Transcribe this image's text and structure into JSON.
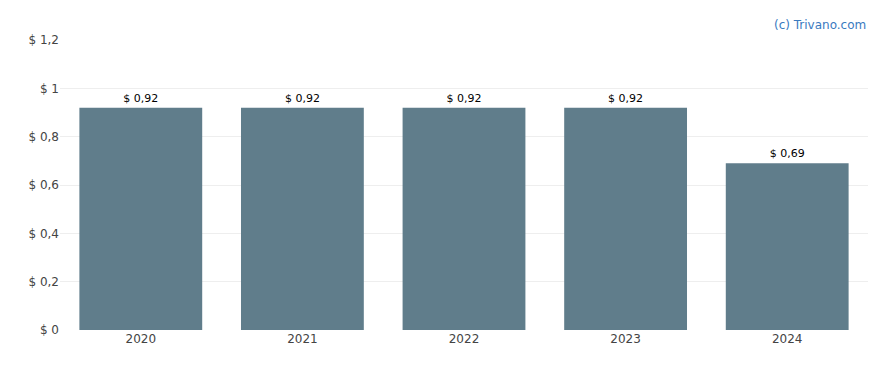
{
  "chart_data": {
    "type": "bar",
    "categories": [
      "2020",
      "2021",
      "2022",
      "2023",
      "2024"
    ],
    "values": [
      0.92,
      0.92,
      0.92,
      0.92,
      0.69
    ],
    "value_labels": [
      "$ 0,92",
      "$ 0,92",
      "$ 0,92",
      "$ 0,92",
      "$ 0,69"
    ],
    "data_labels": true,
    "color": "#607d8b",
    "ylim": [
      0,
      1.2
    ],
    "yticks": [
      {
        "value": 0,
        "label": "$ 0"
      },
      {
        "value": 0.2,
        "label": "$ 0,2"
      },
      {
        "value": 0.4,
        "label": "$ 0,4"
      },
      {
        "value": 0.6,
        "label": "$ 0,6"
      },
      {
        "value": 0.8,
        "label": "$ 0,8"
      },
      {
        "value": 1.0,
        "label": "$ 1"
      },
      {
        "value": 1.2,
        "label": "$ 1,2"
      }
    ],
    "grid": true,
    "annotations": [
      {
        "text": "(c) Trivano.com",
        "color": "#3a7abf"
      }
    ]
  }
}
